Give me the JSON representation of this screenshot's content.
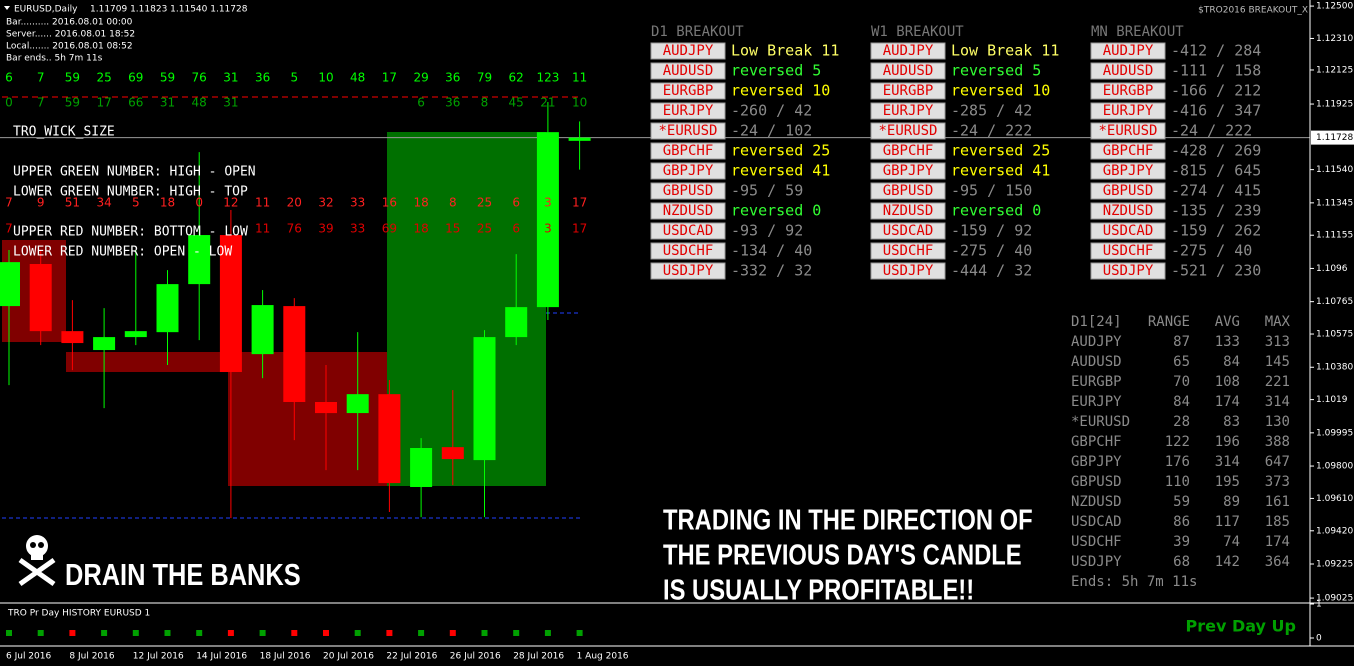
{
  "header": {
    "symbol": "EURUSD,Daily",
    "ohlc": "1.11709 1.11823 1.11540 1.11728",
    "lines": [
      "Bar.......... 2016.08.01 00:00",
      "Server...... 2016.08.01 18:52",
      "Local....... 2016.08.01 08:52",
      "Bar ends.. 5h 7m 11s"
    ]
  },
  "indicator_name": "$TRO2016 BREAKOUT_X",
  "chart_data": {
    "type": "candlestick",
    "categories": [
      "6 Jul 2016",
      null,
      "8 Jul 2016",
      null,
      "12 Jul 2016",
      null,
      "14 Jul 2016",
      null,
      "18 Jul 2016",
      null,
      "20 Jul 2016",
      null,
      "22 Jul 2016",
      null,
      "26 Jul 2016",
      null,
      "28 Jul 2016",
      null,
      "1 Aug 2016"
    ],
    "open": [
      1.10739,
      1.10986,
      1.10592,
      1.10481,
      1.10557,
      1.10586,
      1.10868,
      1.11156,
      1.10457,
      1.10739,
      1.10176,
      1.10111,
      1.10222,
      1.09677,
      1.09911,
      1.09835,
      1.10557,
      1.10733,
      1.11709
    ],
    "high": [
      1.11068,
      1.11068,
      1.10774,
      1.10727,
      1.11068,
      1.1095,
      1.11643,
      1.11303,
      1.10833,
      1.10786,
      1.10393,
      1.10586,
      1.10305,
      1.09964,
      1.10246,
      1.10598,
      1.11044,
      1.11937,
      1.11823
    ],
    "low": [
      1.10275,
      1.1051,
      1.10363,
      1.1014,
      1.1051,
      1.10393,
      1.10539,
      1.09495,
      1.10316,
      1.09952,
      1.09776,
      1.09776,
      1.0953,
      1.095,
      1.09688,
      1.095,
      1.1051,
      1.10657,
      1.1154
    ],
    "close": [
      1.10997,
      1.10592,
      1.10522,
      1.10557,
      1.10592,
      1.10868,
      1.11156,
      1.10352,
      1.10745,
      1.10176,
      1.10111,
      1.10222,
      1.097,
      1.09906,
      1.09841,
      1.10557,
      1.10733,
      1.1176,
      1.11728
    ],
    "up_color": "#00ff00",
    "down_color": "#ff0000",
    "ylim": [
      1.09002,
      1.12524
    ],
    "yticks": [
      {
        "value": 1.125,
        "label": "1.12500"
      },
      {
        "value": 1.1231,
        "label": "1.12310"
      },
      {
        "value": 1.12125,
        "label": "1.12125"
      },
      {
        "value": 1.11925,
        "label": "1.11925"
      },
      {
        "value": 1.1154,
        "label": "1.11540"
      },
      {
        "value": 1.11345,
        "label": "1.11345"
      },
      {
        "value": 1.11155,
        "label": "1.11155"
      },
      1.1096,
      {
        "value": 1.10765,
        "label": "1.10765"
      },
      {
        "value": 1.10575,
        "label": "1.10575"
      },
      {
        "value": 1.1038,
        "label": "1.10380"
      },
      1.1019,
      {
        "value": 1.09995,
        "label": "1.09995"
      },
      {
        "value": 1.098,
        "label": "1.09800"
      },
      {
        "value": 1.0961,
        "label": "1.09610"
      },
      {
        "value": 1.0942,
        "label": "1.09420"
      },
      {
        "value": 1.09225,
        "label": "1.09225"
      },
      {
        "value": 1.09025,
        "label": "1.09025"
      }
    ],
    "last_price": 1.11728
  },
  "wick_counts": {
    "upper_green": [
      6,
      7,
      59,
      25,
      69,
      59,
      76,
      31,
      36,
      5,
      10,
      48,
      17,
      29,
      36,
      79,
      62,
      123,
      11
    ],
    "lower_green": [
      0,
      7,
      59,
      17,
      66,
      31,
      48,
      31,
      null,
      null,
      null,
      null,
      null,
      6,
      36,
      8,
      45,
      21,
      10
    ],
    "upper_red": [
      7,
      9,
      51,
      34,
      5,
      18,
      0,
      12,
      11,
      20,
      32,
      33,
      16,
      18,
      8,
      25,
      6,
      3,
      17
    ],
    "lower_red": [
      7,
      null,
      null,
      null,
      null,
      null,
      null,
      null,
      11,
      76,
      39,
      33,
      69,
      18,
      15,
      25,
      6,
      3,
      17
    ]
  },
  "legend_text": [
    "TRO_WICK_SIZE",
    "UPPER GREEN NUMBER: HIGH - OPEN",
    "LOWER GREEN NUMBER: HIGH - TOP",
    "UPPER RED NUMBER: BOTTOM - LOW",
    "LOWER RED NUMBER: OPEN - LOW"
  ],
  "banner": "DRAIN THE BANKS",
  "message": [
    "TRADING IN THE DIRECTION OF",
    "THE PREVIOUS DAY'S CANDLE",
    "IS USUALLY PROFITABLE!!"
  ],
  "breakout_panels": [
    {
      "title": "D1 BREAKOUT",
      "rows": [
        {
          "pair": "AUDJPY",
          "status": "Low Break 11",
          "color": "#ffff66"
        },
        {
          "pair": "AUDUSD",
          "status": "reversed 5",
          "color": "#33ff33"
        },
        {
          "pair": "EURGBP",
          "status": "reversed 10",
          "color": "#ffff00"
        },
        {
          "pair": "EURJPY",
          "status": "-260 / 42",
          "color": "#8a8a8a"
        },
        {
          "pair": "*EURUSD",
          "status": "-24 / 102",
          "color": "#8a8a8a"
        },
        {
          "pair": "GBPCHF",
          "status": "reversed 25",
          "color": "#ffff00"
        },
        {
          "pair": "GBPJPY",
          "status": "reversed 41",
          "color": "#ffff00"
        },
        {
          "pair": "GBPUSD",
          "status": "-95 / 59",
          "color": "#8a8a8a"
        },
        {
          "pair": "NZDUSD",
          "status": "reversed 0",
          "color": "#33ff33"
        },
        {
          "pair": "USDCAD",
          "status": "-93 / 92",
          "color": "#8a8a8a"
        },
        {
          "pair": "USDCHF",
          "status": "-134 / 40",
          "color": "#8a8a8a"
        },
        {
          "pair": "USDJPY",
          "status": "-332 / 32",
          "color": "#8a8a8a"
        }
      ]
    },
    {
      "title": "W1 BREAKOUT",
      "rows": [
        {
          "pair": "AUDJPY",
          "status": "Low Break 11",
          "color": "#ffff66"
        },
        {
          "pair": "AUDUSD",
          "status": "reversed 5",
          "color": "#33ff33"
        },
        {
          "pair": "EURGBP",
          "status": "reversed 10",
          "color": "#ffff00"
        },
        {
          "pair": "EURJPY",
          "status": "-285 / 42",
          "color": "#8a8a8a"
        },
        {
          "pair": "*EURUSD",
          "status": "-24 / 222",
          "color": "#8a8a8a"
        },
        {
          "pair": "GBPCHF",
          "status": "reversed 25",
          "color": "#ffff00"
        },
        {
          "pair": "GBPJPY",
          "status": "reversed 41",
          "color": "#ffff00"
        },
        {
          "pair": "GBPUSD",
          "status": "-95 / 150",
          "color": "#8a8a8a"
        },
        {
          "pair": "NZDUSD",
          "status": "reversed 0",
          "color": "#33ff33"
        },
        {
          "pair": "USDCAD",
          "status": "-159 / 92",
          "color": "#8a8a8a"
        },
        {
          "pair": "USDCHF",
          "status": "-275 / 40",
          "color": "#8a8a8a"
        },
        {
          "pair": "USDJPY",
          "status": "-444 / 32",
          "color": "#8a8a8a"
        }
      ]
    },
    {
      "title": "MN BREAKOUT",
      "rows": [
        {
          "pair": "AUDJPY",
          "status": "-412 / 284",
          "color": "#8a8a8a"
        },
        {
          "pair": "AUDUSD",
          "status": "-111 / 158",
          "color": "#8a8a8a"
        },
        {
          "pair": "EURGBP",
          "status": "-166 / 212",
          "color": "#8a8a8a"
        },
        {
          "pair": "EURJPY",
          "status": "-416 / 347",
          "color": "#8a8a8a"
        },
        {
          "pair": "*EURUSD",
          "status": "-24 / 222",
          "color": "#8a8a8a"
        },
        {
          "pair": "GBPCHF",
          "status": "-428 / 269",
          "color": "#8a8a8a"
        },
        {
          "pair": "GBPJPY",
          "status": "-815 / 645",
          "color": "#8a8a8a"
        },
        {
          "pair": "GBPUSD",
          "status": "-274 / 415",
          "color": "#8a8a8a"
        },
        {
          "pair": "NZDUSD",
          "status": "-135 / 239",
          "color": "#8a8a8a"
        },
        {
          "pair": "USDCAD",
          "status": "-159 / 262",
          "color": "#8a8a8a"
        },
        {
          "pair": "USDCHF",
          "status": "-275 / 40",
          "color": "#8a8a8a"
        },
        {
          "pair": "USDJPY",
          "status": "-521 / 230",
          "color": "#8a8a8a"
        }
      ]
    }
  ],
  "range_table": {
    "header": [
      "D1[24]",
      "RANGE",
      "AVG",
      "MAX"
    ],
    "rows": [
      [
        "AUDJPY",
        87,
        133,
        313
      ],
      [
        "AUDUSD",
        65,
        84,
        145
      ],
      [
        "EURGBP",
        70,
        108,
        221
      ],
      [
        "EURJPY",
        84,
        174,
        314
      ],
      [
        "*EURUSD",
        28,
        83,
        130
      ],
      [
        "GBPCHF",
        122,
        196,
        388
      ],
      [
        "GBPJPY",
        176,
        314,
        647
      ],
      [
        "GBPUSD",
        110,
        195,
        373
      ],
      [
        "NZDUSD",
        59,
        89,
        161
      ],
      [
        "USDCAD",
        86,
        117,
        185
      ],
      [
        "USDCHF",
        39,
        74,
        174
      ],
      [
        "USDJPY",
        68,
        142,
        364
      ]
    ],
    "footer": "Ends: 5h 7m 11s"
  },
  "history": {
    "title": "TRO Pr Day HISTORY EURUSD 1",
    "status": "Prev Day Up",
    "yticks": [
      1,
      0
    ],
    "values": [
      1,
      1,
      0,
      1,
      1,
      1,
      1,
      0,
      1,
      0,
      0,
      1,
      0,
      1,
      0,
      1,
      1,
      1,
      1
    ]
  }
}
